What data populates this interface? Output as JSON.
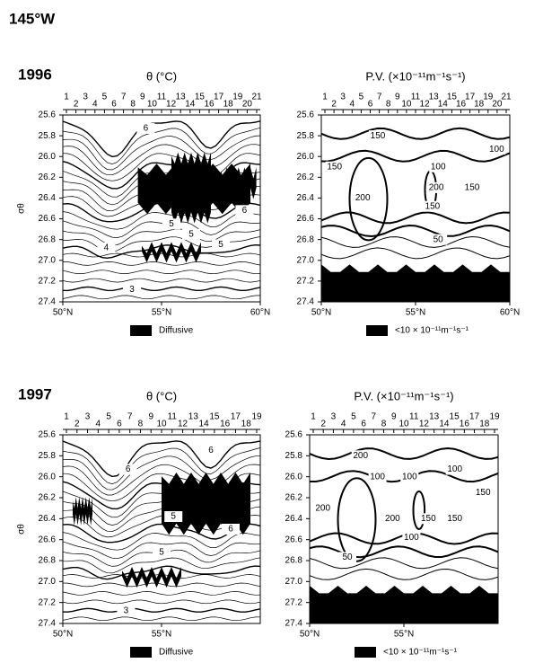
{
  "title": "145°W",
  "chart_data": [
    {
      "type": "contour",
      "year": "1996",
      "title": "θ (°C)",
      "ylabel": "σθ",
      "stations": [
        1,
        2,
        3,
        4,
        5,
        6,
        7,
        8,
        9,
        10,
        11,
        12,
        13,
        14,
        15,
        16,
        17,
        18,
        19,
        20,
        21
      ],
      "xlim": [
        50,
        60
      ],
      "xticks": [
        {
          "value": 50,
          "label": "50°N"
        },
        {
          "value": 55,
          "label": "55°N"
        },
        {
          "value": 60,
          "label": "60°N"
        }
      ],
      "ylim": [
        27.4,
        25.6
      ],
      "yticks": [
        25.6,
        25.8,
        {
          "value": 26,
          "label": "26.0"
        },
        26.2,
        26.4,
        26.6,
        26.8,
        {
          "value": 27,
          "label": "27.0"
        },
        27.2,
        27.4
      ],
      "contour_labels": [
        {
          "value": 6,
          "x": 54.2,
          "y": 25.73
        },
        {
          "value": 5,
          "x": 55.5,
          "y": 26.65
        },
        {
          "value": 5,
          "x": 56.5,
          "y": 26.75
        },
        {
          "value": 5,
          "x": 58.0,
          "y": 26.85
        },
        {
          "value": 6,
          "x": 59.2,
          "y": 26.52
        },
        {
          "value": 4,
          "x": 52.2,
          "y": 26.88
        },
        {
          "value": 3,
          "x": 53.5,
          "y": 27.28
        }
      ],
      "legend": "Diffusive",
      "shade_color": "#000000"
    },
    {
      "type": "contour",
      "title": "P.V. (×10⁻¹¹m⁻¹s⁻¹)",
      "stations": [
        1,
        2,
        3,
        4,
        5,
        6,
        7,
        8,
        9,
        10,
        11,
        12,
        13,
        14,
        15,
        16,
        17,
        18,
        19,
        20,
        21
      ],
      "xlim": [
        50,
        60
      ],
      "xticks": [
        {
          "value": 50,
          "label": "50°N"
        },
        {
          "value": 55,
          "label": "55°N"
        },
        {
          "value": 60,
          "label": "60°N"
        }
      ],
      "ylim": [
        27.4,
        25.6
      ],
      "yticks": [
        25.6,
        25.8,
        {
          "value": 26,
          "label": "26.0"
        },
        26.2,
        26.4,
        26.6,
        26.8,
        {
          "value": 27,
          "label": "27.0"
        },
        27.2,
        27.4
      ],
      "contour_labels": [
        {
          "value": 150,
          "x": 53,
          "y": 25.8
        },
        {
          "value": 150,
          "x": 50.7,
          "y": 26.1
        },
        {
          "value": 100,
          "x": 59.3,
          "y": 25.93
        },
        {
          "value": 100,
          "x": 56.2,
          "y": 26.1
        },
        {
          "value": 200,
          "x": 52.2,
          "y": 26.4
        },
        {
          "value": 200,
          "x": 56.1,
          "y": 26.3
        },
        {
          "value": 150,
          "x": 55.9,
          "y": 26.48
        },
        {
          "value": 150,
          "x": 58.0,
          "y": 26.3
        },
        {
          "value": 50,
          "x": 56.2,
          "y": 26.8
        }
      ],
      "legend": "<10 × 10⁻¹¹m⁻¹s⁻¹",
      "shade_color": "#000000"
    },
    {
      "type": "contour",
      "year": "1997",
      "title": "θ (°C)",
      "ylabel": "σθ",
      "stations": [
        1,
        2,
        3,
        4,
        5,
        6,
        7,
        8,
        9,
        10,
        11,
        12,
        13,
        14,
        15,
        16,
        17,
        18,
        19
      ],
      "xlim": [
        50,
        60
      ],
      "xticks": [
        {
          "value": 50,
          "label": "50°N"
        },
        {
          "value": 55,
          "label": "55°N"
        }
      ],
      "ylim": [
        27.4,
        25.6
      ],
      "yticks": [
        25.6,
        25.8,
        {
          "value": 26,
          "label": "26.0"
        },
        26.2,
        26.4,
        26.6,
        26.8,
        {
          "value": 27,
          "label": "27.0"
        },
        27.2,
        27.4
      ],
      "contour_labels": [
        {
          "value": 6,
          "x": 57.5,
          "y": 25.75
        },
        {
          "value": 6,
          "x": 53.3,
          "y": 25.93
        },
        {
          "value": 5,
          "x": 55.6,
          "y": 26.38
        },
        {
          "value": 5,
          "x": 55,
          "y": 26.72
        },
        {
          "value": 6,
          "x": 58.5,
          "y": 26.5
        },
        {
          "value": 3,
          "x": 53.2,
          "y": 27.28
        }
      ],
      "legend": "Diffusive",
      "shade_color": "#000000"
    },
    {
      "type": "contour",
      "title": "P.V. (×10⁻¹¹m⁻¹s⁻¹)",
      "stations": [
        1,
        2,
        3,
        4,
        5,
        6,
        7,
        8,
        9,
        10,
        11,
        12,
        13,
        14,
        15,
        16,
        17,
        18,
        19
      ],
      "xlim": [
        50,
        60
      ],
      "xticks": [
        {
          "value": 50,
          "label": "50°N"
        },
        {
          "value": 55,
          "label": "55°N"
        }
      ],
      "ylim": [
        27.4,
        25.6
      ],
      "yticks": [
        25.6,
        25.8,
        {
          "value": 26,
          "label": "26.0"
        },
        26.2,
        26.4,
        26.6,
        26.8,
        {
          "value": 27,
          "label": "27.0"
        },
        27.2,
        27.4
      ],
      "contour_labels": [
        {
          "value": 200,
          "x": 52.7,
          "y": 25.8
        },
        {
          "value": 100,
          "x": 53.6,
          "y": 26.0
        },
        {
          "value": 100,
          "x": 57.7,
          "y": 25.93
        },
        {
          "value": 100,
          "x": 55.3,
          "y": 26.0
        },
        {
          "value": 150,
          "x": 59.2,
          "y": 26.15
        },
        {
          "value": 200,
          "x": 50.7,
          "y": 26.3
        },
        {
          "value": 200,
          "x": 54.4,
          "y": 26.4
        },
        {
          "value": 150,
          "x": 56.3,
          "y": 26.4
        },
        {
          "value": 150,
          "x": 57.7,
          "y": 26.4
        },
        {
          "value": 100,
          "x": 55.4,
          "y": 26.58
        },
        {
          "value": 50,
          "x": 52.0,
          "y": 26.77
        }
      ],
      "legend": "<10 × 10⁻¹¹m⁻¹s⁻¹",
      "shade_color": "#000000"
    }
  ]
}
